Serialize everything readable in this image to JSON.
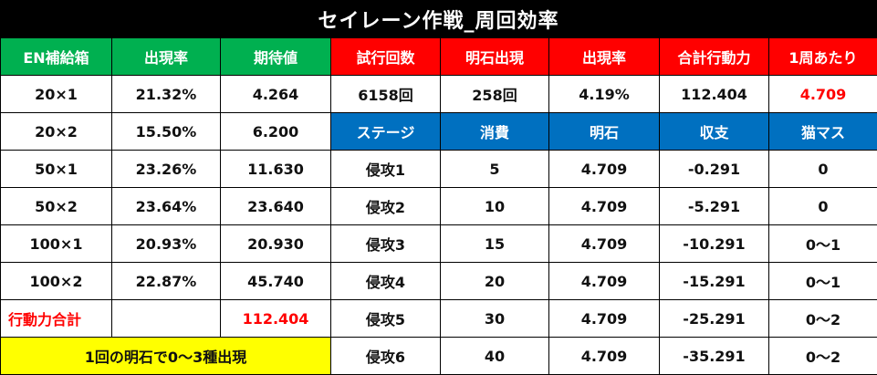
{
  "title": "セイレーン作戦_周回効率",
  "headers": {
    "en_box": "EN補給箱",
    "appearance_rate": "出現率",
    "expected_value": "期待値",
    "trial_count": "試行回数",
    "akashi_appearance": "明石出現",
    "appearance_rate2": "出現率",
    "total_action_power": "合計行動力",
    "per_lap": "1周あたり"
  },
  "left_rows": [
    {
      "box": "20×1",
      "rate": "21.32%",
      "expected": "4.264"
    },
    {
      "box": "20×2",
      "rate": "15.50%",
      "expected": "6.200"
    },
    {
      "box": "50×1",
      "rate": "23.26%",
      "expected": "11.630"
    },
    {
      "box": "50×2",
      "rate": "23.64%",
      "expected": "23.640"
    },
    {
      "box": "100×1",
      "rate": "20.93%",
      "expected": "20.930"
    },
    {
      "box": "100×2",
      "rate": "22.87%",
      "expected": "45.740"
    }
  ],
  "summary": {
    "trials": "6158回",
    "akashi": "258回",
    "rate": "4.19%",
    "total_power": "112.404",
    "per_lap": "4.709"
  },
  "total_row": {
    "label": "行動力合計",
    "value": "112.404"
  },
  "note": "1回の明石で0～3種出現",
  "stage_headers": {
    "stage": "ステージ",
    "cost": "消費",
    "akashi": "明石",
    "balance": "収支",
    "cat_tiles": "猫マス"
  },
  "stages": [
    {
      "name": "侵攻1",
      "cost": "5",
      "akashi": "4.709",
      "balance": "-0.291",
      "cat": "0"
    },
    {
      "name": "侵攻2",
      "cost": "10",
      "akashi": "4.709",
      "balance": "-5.291",
      "cat": "0"
    },
    {
      "name": "侵攻3",
      "cost": "15",
      "akashi": "4.709",
      "balance": "-10.291",
      "cat": "0～1"
    },
    {
      "name": "侵攻4",
      "cost": "20",
      "akashi": "4.709",
      "balance": "-15.291",
      "cat": "0～1"
    },
    {
      "name": "侵攻5",
      "cost": "30",
      "akashi": "4.709",
      "balance": "-25.291",
      "cat": "0～2"
    },
    {
      "name": "侵攻6",
      "cost": "40",
      "akashi": "4.709",
      "balance": "-35.291",
      "cat": "0～2"
    }
  ],
  "colors": {
    "green_header": "#00b050",
    "red_header": "#ff0000",
    "blue_header": "#0070c0",
    "highlight": "#ffff00",
    "title_bg": "#000000"
  }
}
